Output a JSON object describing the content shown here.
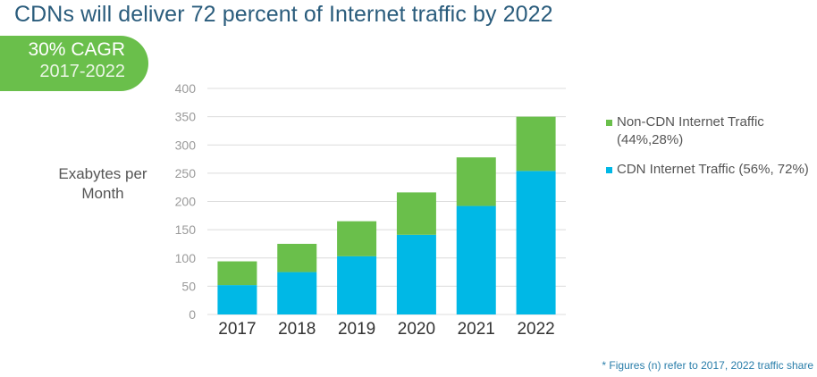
{
  "title": "CDNs will deliver 72 percent of Internet traffic by 2022",
  "badge": {
    "line1": "30% CAGR",
    "line2": "2017-2022"
  },
  "footnote": "* Figures (n) refer to 2017, 2022 traffic share",
  "colors": {
    "cdn": "#00b8e6",
    "non_cdn": "#6abf4b"
  },
  "chart_data": {
    "type": "bar",
    "stacked": true,
    "title": "CDNs will deliver 72 percent of Internet traffic by 2022",
    "xlabel": "",
    "ylabel": "Exabytes per Month",
    "ylim": [
      0,
      400
    ],
    "yticks": [
      0,
      50,
      100,
      150,
      200,
      250,
      300,
      350,
      400
    ],
    "grid": true,
    "legend_position": "right",
    "categories": [
      "2017",
      "2018",
      "2019",
      "2020",
      "2021",
      "2022"
    ],
    "series": [
      {
        "name": "CDN Internet Traffic (56%, 72%)",
        "color": "#00b8e6",
        "values": [
          52,
          75,
          103,
          141,
          192,
          254
        ]
      },
      {
        "name": "Non-CDN Internet Traffic (44%,28%)",
        "color": "#6abf4b",
        "values": [
          42,
          50,
          62,
          75,
          86,
          96
        ]
      }
    ]
  },
  "legend": [
    {
      "label": "Non-CDN Internet Traffic (44%,28%)",
      "color": "#6abf4b"
    },
    {
      "label": "CDN Internet Traffic (56%, 72%)",
      "color": "#00b8e6"
    }
  ]
}
